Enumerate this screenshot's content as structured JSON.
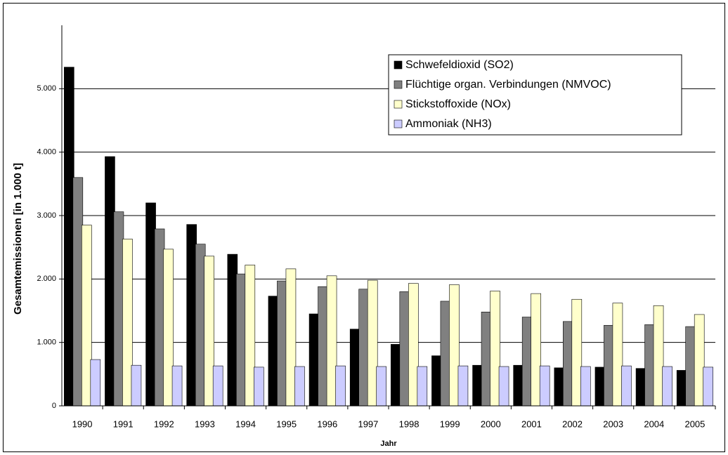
{
  "chart_data": {
    "type": "bar",
    "x_label": "Jahr",
    "y_label": "Gesamtemissionen  [in 1.000 t]",
    "categories": [
      "1990",
      "1991",
      "1992",
      "1993",
      "1994",
      "1995",
      "1996",
      "1997",
      "1998",
      "1999",
      "2000",
      "2001",
      "2002",
      "2003",
      "2004",
      "2005"
    ],
    "series": [
      {
        "name": "Schwefeldioxid (SO2)",
        "color": "#000000",
        "values": [
          5340,
          3930,
          3200,
          2860,
          2390,
          1730,
          1450,
          1210,
          970,
          790,
          640,
          640,
          600,
          610,
          590,
          560
        ]
      },
      {
        "name": "Flüchtige organ. Verbindungen (NMVOC)",
        "color": "#808080",
        "values": [
          3600,
          3060,
          2790,
          2550,
          2080,
          1970,
          1880,
          1840,
          1800,
          1650,
          1480,
          1400,
          1330,
          1270,
          1280,
          1250
        ]
      },
      {
        "name": "Stickstoffoxide (NOx)",
        "color": "#ffffcc",
        "values": [
          2850,
          2630,
          2470,
          2360,
          2220,
          2160,
          2050,
          1980,
          1930,
          1910,
          1810,
          1770,
          1680,
          1620,
          1580,
          1440
        ]
      },
      {
        "name": "Ammoniak (NH3)",
        "color": "#ccccff",
        "values": [
          730,
          640,
          630,
          630,
          610,
          620,
          630,
          620,
          620,
          630,
          620,
          630,
          620,
          630,
          620,
          610
        ]
      }
    ],
    "ylim": [
      0,
      6000
    ],
    "yticks": [
      0,
      {
        "value": 1000,
        "label": "1.000"
      },
      {
        "value": 2000,
        "label": "2.000"
      },
      {
        "value": 3000,
        "label": "3.000"
      },
      {
        "value": 4000,
        "label": "4.000"
      },
      {
        "value": 5000,
        "label": "5.000"
      }
    ],
    "grid": true,
    "legend": "top-right"
  }
}
